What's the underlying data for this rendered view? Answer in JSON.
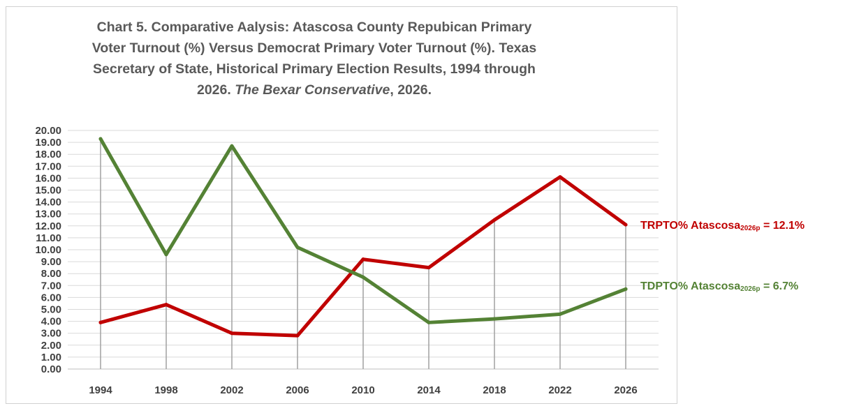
{
  "chart_data": {
    "type": "line",
    "title_lines": [
      "Chart 5. Comparative Aalysis: Atascosa County Repubican Primary",
      "Voter Turnout (%) Versus Democrat Primary Voter Turnout (%). Texas",
      "Secretary of State, Historical Primary Election Results, 1994 through"
    ],
    "title_last_pre": "2026.  ",
    "title_last_italic": "The Bexar Conservative",
    "title_last_post": ", 2026.",
    "categories": [
      "1994",
      "1998",
      "2002",
      "2006",
      "2010",
      "2014",
      "2018",
      "2022",
      "2026"
    ],
    "ylim": [
      0,
      20
    ],
    "ytick_step": 1,
    "ytick_format": "0.00",
    "grid": true,
    "vertical_drop_lines": true,
    "series": [
      {
        "color": "#c00000",
        "values": [
          3.9,
          5.4,
          3.0,
          2.8,
          9.2,
          8.5,
          12.5,
          16.1,
          12.1
        ]
      },
      {
        "color": "#548235",
        "values": [
          19.3,
          9.6,
          18.7,
          10.2,
          7.7,
          3.9,
          4.2,
          4.6,
          6.7
        ]
      }
    ],
    "annotations": [
      {
        "prefix": "TRPTO% Atascosa",
        "sub": "2026p",
        "suffix": " = 12.1%",
        "color": "#c00000"
      },
      {
        "prefix": "TDPTO% Atascosa",
        "sub": "2026p",
        "suffix": " = 6.7%",
        "color": "#548235"
      }
    ]
  }
}
